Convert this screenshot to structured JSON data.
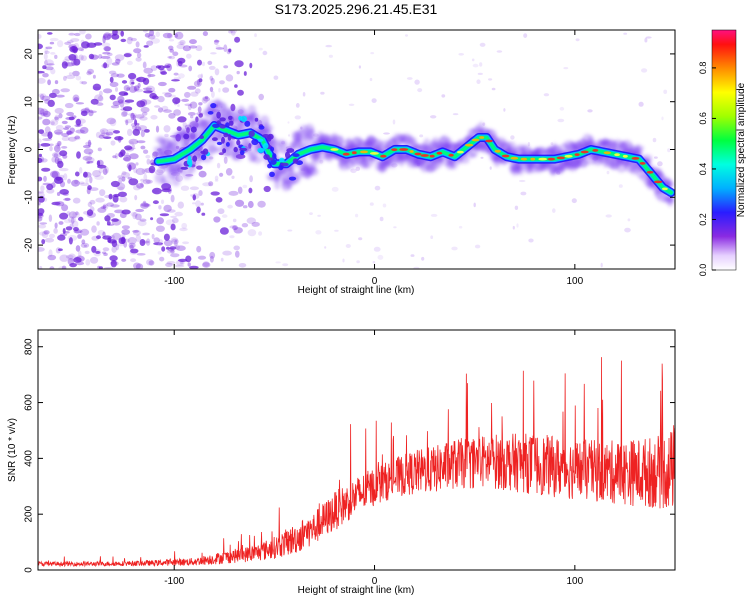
{
  "title": "S173.2025.296.21.45.E31",
  "colors": {
    "snr_line": "#ee2222",
    "axis": "#000000",
    "noise": "#7a2ee0"
  },
  "chart_data": [
    {
      "type": "heatmap",
      "name": "spectrogram",
      "xlabel": "Height of straight line (km)",
      "ylabel": "Frequency (Hz)",
      "xlim": [
        -168,
        150
      ],
      "ylim": [
        -25,
        25
      ],
      "xticks": [
        -100,
        0,
        100
      ],
      "xtick_labels": [
        "-100",
        "0",
        "100"
      ],
      "yticks": [
        -20,
        -10,
        0,
        10,
        20
      ],
      "ytick_labels": [
        "-20",
        "-10",
        "0",
        "10",
        "20"
      ],
      "ridge": {
        "x": [
          -108,
          -100,
          -92,
          -86,
          -80,
          -74,
          -68,
          -62,
          -56,
          -50,
          -44,
          -38,
          -32,
          -26,
          -20,
          -14,
          -8,
          -2,
          4,
          10,
          16,
          22,
          28,
          34,
          40,
          46,
          52,
          56,
          60,
          66,
          72,
          78,
          84,
          90,
          96,
          102,
          108,
          114,
          120,
          126,
          132,
          136,
          140,
          144,
          148
        ],
        "y": [
          -2.5,
          -2,
          0,
          2,
          5,
          4,
          3,
          3.5,
          2,
          -3,
          -3,
          -1,
          0,
          0.5,
          0,
          -1,
          -0.5,
          -0.5,
          -1.5,
          0,
          0,
          -1,
          -1.5,
          -0.5,
          -1.5,
          0.5,
          2.5,
          2.5,
          0,
          -1.5,
          -2,
          -2,
          -2,
          -2,
          -1.5,
          -1,
          0,
          -0.5,
          -1,
          -1.5,
          -2,
          -4,
          -6,
          -8,
          -9
        ]
      },
      "colorbar": {
        "label": "Normalized spectral amplitude",
        "range": [
          0,
          0.95
        ],
        "ticks": [
          0.0,
          0.2,
          0.4,
          0.6,
          0.8
        ],
        "tick_labels": [
          "0.0",
          "0.2",
          "0.4",
          "0.6",
          "0.8"
        ]
      }
    },
    {
      "type": "line",
      "name": "snr",
      "xlabel": "Height of straight line (km)",
      "ylabel": "SNR (10 * v/v)",
      "xlim": [
        -168,
        150
      ],
      "ylim": [
        0,
        860
      ],
      "xticks": [
        -100,
        0,
        100
      ],
      "xtick_labels": [
        "-100",
        "0",
        "100"
      ],
      "yticks": [
        0,
        200,
        400,
        600,
        800
      ],
      "ytick_labels": [
        "0",
        "200",
        "400",
        "600",
        "800"
      ],
      "envelope_x": [
        -168,
        -140,
        -110,
        -90,
        -80,
        -60,
        -50,
        -40,
        -30,
        -20,
        -10,
        0,
        10,
        20,
        30,
        40,
        60,
        80,
        100,
        120,
        140,
        150
      ],
      "envelope_mean": [
        22,
        22,
        25,
        30,
        40,
        60,
        80,
        110,
        150,
        210,
        260,
        300,
        330,
        350,
        360,
        380,
        390,
        380,
        360,
        350,
        350,
        360
      ],
      "envelope_spread": [
        8,
        8,
        10,
        14,
        20,
        30,
        40,
        55,
        60,
        70,
        70,
        70,
        70,
        80,
        85,
        90,
        100,
        110,
        110,
        115,
        130,
        150
      ]
    }
  ]
}
